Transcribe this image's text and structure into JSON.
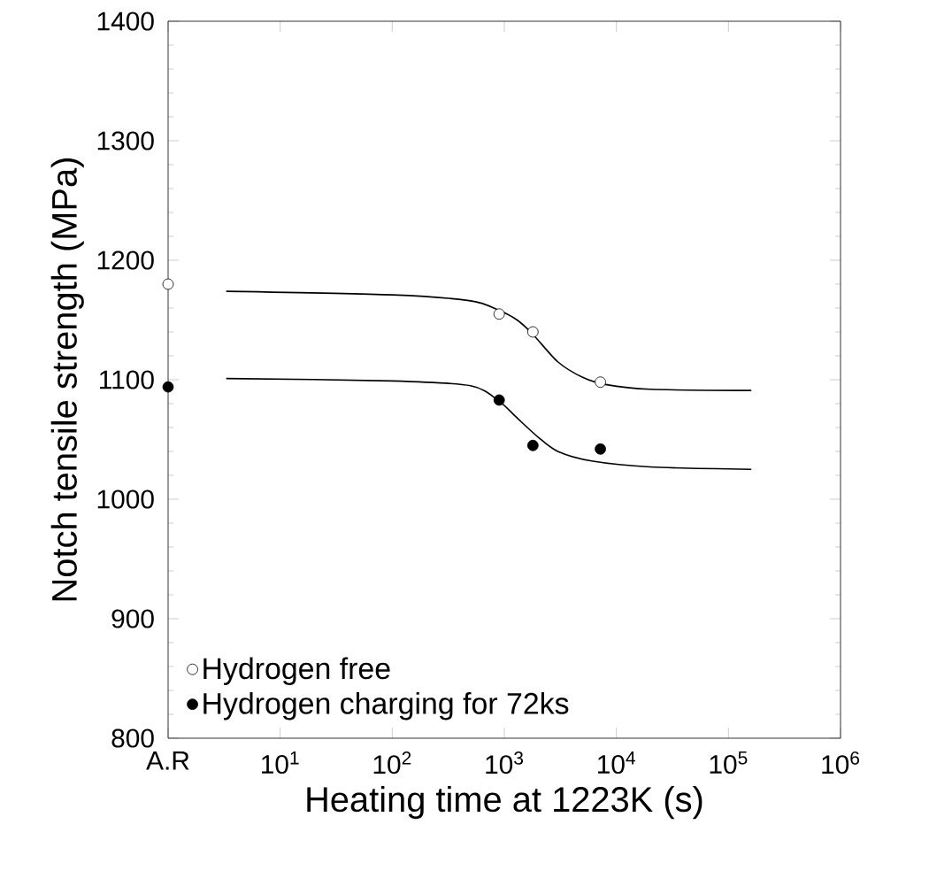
{
  "chart_data": {
    "type": "scatter",
    "xlabel": "Heating time at 1223K (s)",
    "ylabel": "Notch tensile strength (MPa)",
    "log": "x",
    "xlim": [
      1,
      1000000
    ],
    "ylim": [
      800,
      1400
    ],
    "xticks": [
      {
        "value": 1,
        "label": "A.R"
      },
      {
        "value": 10,
        "label": "10$^{1}$"
      },
      {
        "value": 100,
        "label": "10$^{2}$"
      },
      {
        "value": 1000,
        "label": "10$^{3}$"
      },
      {
        "value": 10000,
        "label": "10$^{4}$"
      },
      {
        "value": 100000,
        "label": "10$^{5}$"
      },
      {
        "value": 1000000,
        "label": "10$^{6}$"
      }
    ],
    "yticks": [
      800,
      900,
      1000,
      1100,
      1200,
      1300,
      1400
    ],
    "legend": "bottom left",
    "grid": false,
    "series": [
      {
        "name": "Hydrogen free",
        "color": "#000000",
        "marker": "open circle",
        "x": [
          1,
          900,
          1800,
          7200
        ],
        "values": [
          1180,
          1155,
          1140,
          1098
        ]
      },
      {
        "name": "Hydrogen charging for 72ks",
        "color": "#000000",
        "marker": "circle",
        "x": [
          1,
          900,
          1800,
          7200
        ],
        "values": [
          1094,
          1083,
          1045,
          1042
        ]
      },
      {
        "type": "line",
        "color": "#000000",
        "marker": "none",
        "x": [
          3.3,
          100,
          500,
          900,
          1300,
          1800,
          3000,
          5000,
          8000,
          20000,
          160000
        ],
        "values": [
          1174,
          1171,
          1166,
          1158,
          1150,
          1138,
          1115,
          1102,
          1096,
          1092,
          1091
        ]
      },
      {
        "type": "line",
        "color": "#000000",
        "marker": "none",
        "x": [
          3.3,
          100,
          500,
          900,
          1300,
          2000,
          3000,
          6000,
          20000,
          160000
        ],
        "values": [
          1101,
          1099,
          1095,
          1082,
          1068,
          1052,
          1040,
          1032,
          1027,
          1025
        ]
      }
    ]
  }
}
